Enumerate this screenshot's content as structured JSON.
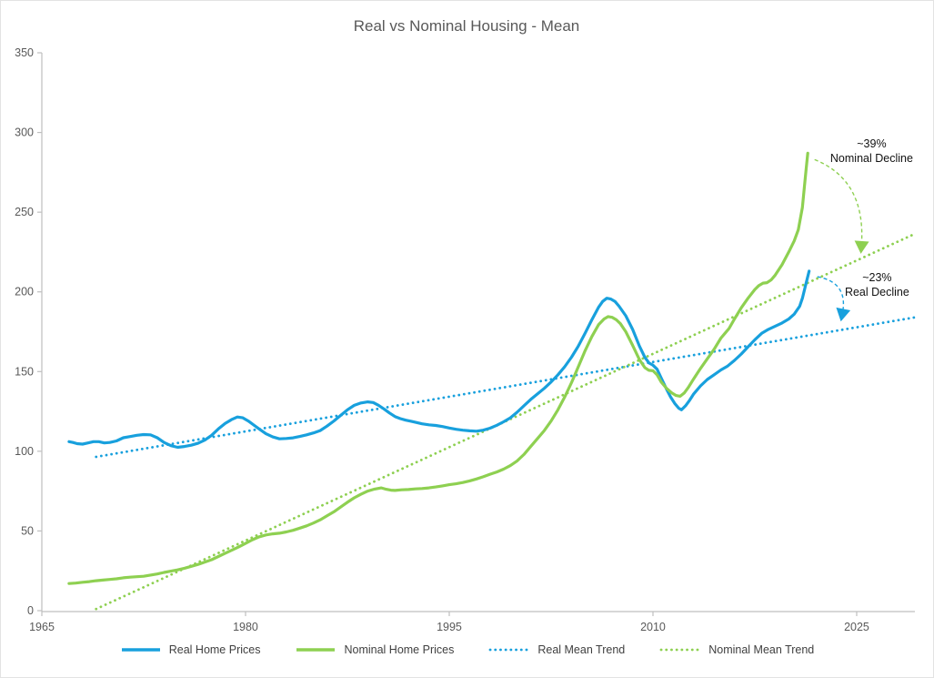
{
  "title_bar": {
    "title": "Real vs Nominal Housing - Mean"
  },
  "colors": {
    "real": "#18a0dd",
    "nominal": "#8ed051",
    "axis_line": "#bfbfbf",
    "axis_text": "#595959",
    "title_text": "#595959",
    "legend_text": "#3f3f3f",
    "annotation_text": "#111111",
    "background": "#ffffff"
  },
  "chart_data": {
    "type": "line",
    "title": "Real vs Nominal Housing - Mean",
    "xlabel": "",
    "ylabel": "",
    "grid": false,
    "legend_position": "bottom",
    "x_axis": {
      "min": 1965,
      "max": 2029.3,
      "ticks": [
        1965,
        1980,
        1995,
        2010,
        2025
      ]
    },
    "y_axis": {
      "min": 0,
      "max": 350,
      "ticks": [
        0,
        50,
        100,
        150,
        200,
        250,
        300,
        350
      ]
    },
    "series": [
      {
        "name": "Real Home Prices",
        "style": "solid",
        "color": "#18a0dd",
        "points": [
          [
            1967.0,
            106
          ],
          [
            1967.3,
            105.5
          ],
          [
            1967.6,
            104.8
          ],
          [
            1968.0,
            104.5
          ],
          [
            1968.4,
            105.2
          ],
          [
            1968.8,
            106
          ],
          [
            1969.2,
            106
          ],
          [
            1969.6,
            105.2
          ],
          [
            1970.0,
            105.5
          ],
          [
            1970.5,
            106.5
          ],
          [
            1971.0,
            108.5
          ],
          [
            1971.5,
            109.2
          ],
          [
            1972.0,
            110
          ],
          [
            1972.5,
            110.5
          ],
          [
            1973.0,
            110.3
          ],
          [
            1973.5,
            108.5
          ],
          [
            1974.0,
            105.5
          ],
          [
            1974.5,
            103.5
          ],
          [
            1975.0,
            102.5
          ],
          [
            1975.5,
            103
          ],
          [
            1976.0,
            103.8
          ],
          [
            1976.5,
            105
          ],
          [
            1977.0,
            107
          ],
          [
            1977.5,
            110
          ],
          [
            1978.0,
            114
          ],
          [
            1978.5,
            117.5
          ],
          [
            1979.0,
            120
          ],
          [
            1979.4,
            121.5
          ],
          [
            1979.8,
            121
          ],
          [
            1980.2,
            119
          ],
          [
            1980.6,
            116.5
          ],
          [
            1981.0,
            114
          ],
          [
            1981.5,
            111
          ],
          [
            1982.0,
            109
          ],
          [
            1982.5,
            107.8
          ],
          [
            1983.0,
            108
          ],
          [
            1983.5,
            108.4
          ],
          [
            1984.0,
            109.3
          ],
          [
            1984.5,
            110.3
          ],
          [
            1985.0,
            111.5
          ],
          [
            1985.5,
            113
          ],
          [
            1986.0,
            115.8
          ],
          [
            1986.5,
            119
          ],
          [
            1987.0,
            122.5
          ],
          [
            1987.5,
            126
          ],
          [
            1988.0,
            128.8
          ],
          [
            1988.5,
            130.3
          ],
          [
            1989.0,
            131
          ],
          [
            1989.4,
            130.6
          ],
          [
            1989.8,
            128.8
          ],
          [
            1990.2,
            126.5
          ],
          [
            1990.6,
            124
          ],
          [
            1991.0,
            121.8
          ],
          [
            1991.4,
            120.5
          ],
          [
            1991.8,
            119.5
          ],
          [
            1992.2,
            118.8
          ],
          [
            1992.6,
            118
          ],
          [
            1993.0,
            117.2
          ],
          [
            1993.5,
            116.6
          ],
          [
            1994.0,
            116.2
          ],
          [
            1994.5,
            115.5
          ],
          [
            1995.0,
            114.6
          ],
          [
            1995.5,
            113.8
          ],
          [
            1996.0,
            113.2
          ],
          [
            1996.5,
            112.8
          ],
          [
            1997.0,
            112.6
          ],
          [
            1997.5,
            113.2
          ],
          [
            1998.0,
            114.5
          ],
          [
            1998.5,
            116.3
          ],
          [
            1999.0,
            118.5
          ],
          [
            1999.5,
            121
          ],
          [
            2000.0,
            124.5
          ],
          [
            2000.5,
            128.5
          ],
          [
            2001.0,
            132.5
          ],
          [
            2001.5,
            136
          ],
          [
            2002.0,
            139.5
          ],
          [
            2002.5,
            143.5
          ],
          [
            2003.0,
            148
          ],
          [
            2003.5,
            153
          ],
          [
            2004.0,
            159
          ],
          [
            2004.5,
            166
          ],
          [
            2005.0,
            174
          ],
          [
            2005.5,
            182.5
          ],
          [
            2006.0,
            190.5
          ],
          [
            2006.3,
            194
          ],
          [
            2006.6,
            196
          ],
          [
            2006.9,
            195.5
          ],
          [
            2007.2,
            194
          ],
          [
            2007.5,
            191
          ],
          [
            2008.0,
            185
          ],
          [
            2008.5,
            176.5
          ],
          [
            2009.0,
            166
          ],
          [
            2009.4,
            159
          ],
          [
            2009.7,
            155.5
          ],
          [
            2010.0,
            154
          ],
          [
            2010.3,
            151.5
          ],
          [
            2010.6,
            146
          ],
          [
            2011.0,
            139
          ],
          [
            2011.3,
            134
          ],
          [
            2011.6,
            130
          ],
          [
            2011.9,
            127
          ],
          [
            2012.1,
            126
          ],
          [
            2012.4,
            128.5
          ],
          [
            2012.7,
            132
          ],
          [
            2013.0,
            136
          ],
          [
            2013.5,
            141
          ],
          [
            2014.0,
            145
          ],
          [
            2014.5,
            148
          ],
          [
            2015.0,
            151
          ],
          [
            2015.5,
            153.5
          ],
          [
            2016.0,
            157
          ],
          [
            2016.5,
            161
          ],
          [
            2017.0,
            165.5
          ],
          [
            2017.5,
            170
          ],
          [
            2018.0,
            174
          ],
          [
            2018.5,
            176.5
          ],
          [
            2019.0,
            178.5
          ],
          [
            2019.5,
            180.5
          ],
          [
            2020.0,
            183
          ],
          [
            2020.4,
            186
          ],
          [
            2020.8,
            191
          ],
          [
            2021.0,
            196
          ],
          [
            2021.2,
            203
          ],
          [
            2021.35,
            208
          ],
          [
            2021.5,
            213
          ]
        ]
      },
      {
        "name": "Nominal Home Prices",
        "style": "solid",
        "color": "#8ed051",
        "points": [
          [
            1967.0,
            17
          ],
          [
            1967.5,
            17.3
          ],
          [
            1968.0,
            17.8
          ],
          [
            1968.5,
            18.2
          ],
          [
            1969.0,
            18.8
          ],
          [
            1969.5,
            19.2
          ],
          [
            1970.0,
            19.6
          ],
          [
            1970.5,
            20
          ],
          [
            1971.0,
            20.6
          ],
          [
            1971.5,
            21
          ],
          [
            1972.0,
            21.3
          ],
          [
            1972.5,
            21.6
          ],
          [
            1973.0,
            22.3
          ],
          [
            1973.5,
            23
          ],
          [
            1974.0,
            24
          ],
          [
            1974.5,
            24.8
          ],
          [
            1975.0,
            25.6
          ],
          [
            1975.5,
            26.6
          ],
          [
            1976.0,
            27.8
          ],
          [
            1976.5,
            29
          ],
          [
            1977.0,
            30.5
          ],
          [
            1977.5,
            32
          ],
          [
            1978.0,
            34
          ],
          [
            1978.5,
            36
          ],
          [
            1979.0,
            38
          ],
          [
            1979.5,
            40
          ],
          [
            1980.0,
            42.2
          ],
          [
            1980.5,
            44.5
          ],
          [
            1981.0,
            46.3
          ],
          [
            1981.5,
            47.5
          ],
          [
            1982.0,
            48.2
          ],
          [
            1982.5,
            48.6
          ],
          [
            1983.0,
            49.4
          ],
          [
            1983.5,
            50.4
          ],
          [
            1984.0,
            51.8
          ],
          [
            1984.5,
            53.2
          ],
          [
            1985.0,
            55
          ],
          [
            1985.5,
            57
          ],
          [
            1986.0,
            59.5
          ],
          [
            1986.5,
            62
          ],
          [
            1987.0,
            65
          ],
          [
            1987.5,
            68
          ],
          [
            1988.0,
            70.8
          ],
          [
            1988.5,
            73
          ],
          [
            1989.0,
            75
          ],
          [
            1989.5,
            76.3
          ],
          [
            1990.0,
            77
          ],
          [
            1990.3,
            76.3
          ],
          [
            1990.7,
            75.6
          ],
          [
            1991.0,
            75.4
          ],
          [
            1991.5,
            75.8
          ],
          [
            1992.0,
            76
          ],
          [
            1992.5,
            76.4
          ],
          [
            1993.0,
            76.6
          ],
          [
            1993.5,
            77
          ],
          [
            1994.0,
            77.6
          ],
          [
            1994.5,
            78.3
          ],
          [
            1995.0,
            79
          ],
          [
            1995.5,
            79.6
          ],
          [
            1996.0,
            80.4
          ],
          [
            1996.5,
            81.4
          ],
          [
            1997.0,
            82.6
          ],
          [
            1997.5,
            84
          ],
          [
            1998.0,
            85.6
          ],
          [
            1998.5,
            87
          ],
          [
            1999.0,
            88.8
          ],
          [
            1999.5,
            91
          ],
          [
            2000.0,
            94
          ],
          [
            2000.5,
            98
          ],
          [
            2001.0,
            103
          ],
          [
            2001.5,
            108
          ],
          [
            2002.0,
            113
          ],
          [
            2002.5,
            119
          ],
          [
            2003.0,
            126
          ],
          [
            2003.5,
            134
          ],
          [
            2004.0,
            143
          ],
          [
            2004.5,
            153
          ],
          [
            2005.0,
            163
          ],
          [
            2005.5,
            172
          ],
          [
            2006.0,
            179.5
          ],
          [
            2006.4,
            183
          ],
          [
            2006.7,
            184.5
          ],
          [
            2007.0,
            184
          ],
          [
            2007.3,
            182.5
          ],
          [
            2007.6,
            180
          ],
          [
            2008.0,
            175
          ],
          [
            2008.5,
            166.5
          ],
          [
            2009.0,
            157.5
          ],
          [
            2009.4,
            152.5
          ],
          [
            2009.7,
            150.8
          ],
          [
            2010.0,
            150.5
          ],
          [
            2010.3,
            148
          ],
          [
            2010.6,
            143.5
          ],
          [
            2011.0,
            139.5
          ],
          [
            2011.4,
            136.5
          ],
          [
            2011.7,
            135
          ],
          [
            2012.0,
            134.5
          ],
          [
            2012.3,
            136.5
          ],
          [
            2012.6,
            140
          ],
          [
            2013.0,
            145.5
          ],
          [
            2013.5,
            152
          ],
          [
            2014.0,
            158
          ],
          [
            2014.5,
            164
          ],
          [
            2015.0,
            171
          ],
          [
            2015.3,
            174
          ],
          [
            2015.6,
            177
          ],
          [
            2016.0,
            183
          ],
          [
            2016.5,
            190
          ],
          [
            2017.0,
            196
          ],
          [
            2017.5,
            201.5
          ],
          [
            2017.8,
            204
          ],
          [
            2018.1,
            205.5
          ],
          [
            2018.4,
            205.8
          ],
          [
            2018.7,
            207.5
          ],
          [
            2019.0,
            210.5
          ],
          [
            2019.5,
            217
          ],
          [
            2020.0,
            225
          ],
          [
            2020.4,
            232
          ],
          [
            2020.7,
            239
          ],
          [
            2021.0,
            253
          ],
          [
            2021.15,
            266
          ],
          [
            2021.28,
            277
          ],
          [
            2021.4,
            287
          ]
        ]
      },
      {
        "name": "Real Mean Trend",
        "style": "dotted",
        "color": "#18a0dd",
        "points": [
          [
            1969.0,
            96.5
          ],
          [
            2029.3,
            184
          ]
        ]
      },
      {
        "name": "Nominal Mean Trend",
        "style": "dotted",
        "color": "#8ed051",
        "points": [
          [
            1969.0,
            1
          ],
          [
            2029.3,
            236.5
          ]
        ]
      }
    ],
    "annotations": [
      {
        "id": "nominal-decline",
        "text_lines": [
          "~39%",
          "Nominal Decline"
        ],
        "text_anchor": [
          2026.1,
          293
        ],
        "color": "#8ed051",
        "arrow": {
          "from": [
            2021.9,
            283
          ],
          "control": [
            2025.7,
            270
          ],
          "to": [
            2025.35,
            229
          ]
        }
      },
      {
        "id": "real-decline",
        "text_lines": [
          "~23%",
          "Real Decline"
        ],
        "text_anchor": [
          2026.5,
          209
        ],
        "color": "#18a0dd",
        "arrow": {
          "from": [
            2022.1,
            209.5
          ],
          "control": [
            2024.4,
            206
          ],
          "to": [
            2023.95,
            186.5
          ]
        }
      }
    ],
    "legend": [
      "Real Home Prices",
      "Nominal Home Prices",
      "Real Mean Trend",
      "Nominal Mean Trend"
    ]
  }
}
